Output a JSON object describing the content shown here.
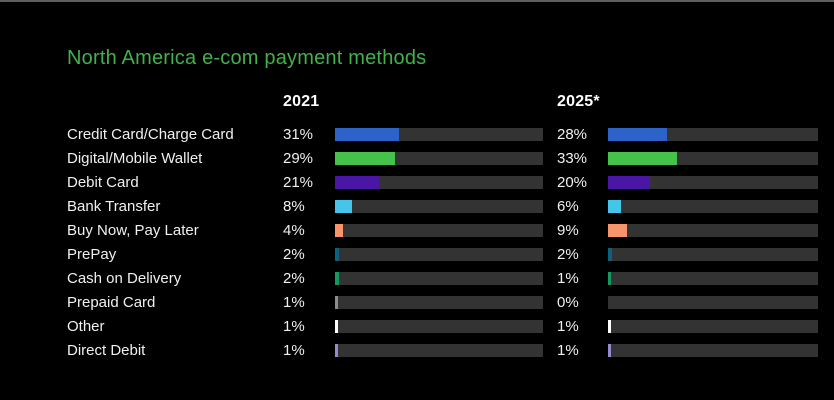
{
  "chart_data": {
    "type": "bar",
    "orientation": "horizontal",
    "title": "North America e-com payment methods",
    "categories": [
      "Credit Card/Charge Card",
      "Digital/Mobile Wallet",
      "Debit Card",
      "Bank Transfer",
      "Buy Now, Pay Later",
      "PrePay",
      "Cash on Delivery",
      "Prepaid Card",
      "Other",
      "Direct Debit"
    ],
    "series": [
      {
        "name": "2021",
        "values": [
          31,
          29,
          21,
          8,
          4,
          2,
          2,
          1,
          1,
          1
        ]
      },
      {
        "name": "2025*",
        "values": [
          28,
          33,
          20,
          6,
          9,
          2,
          1,
          0,
          1,
          1
        ]
      }
    ],
    "value_suffix": "%",
    "xlim": [
      0,
      100
    ],
    "grid": false,
    "legend_position": "column-headers",
    "bar_colors": [
      "#2d62c8",
      "#45c24a",
      "#4a16a6",
      "#44c5e9",
      "#f6946c",
      "#0e617e",
      "#13995f",
      "#8d8d8d",
      "#ffffff",
      "#908cce"
    ],
    "track_color": "#333333",
    "background_color": "#000000",
    "title_color": "#41b14c",
    "text_color": "#f0f0f0"
  }
}
